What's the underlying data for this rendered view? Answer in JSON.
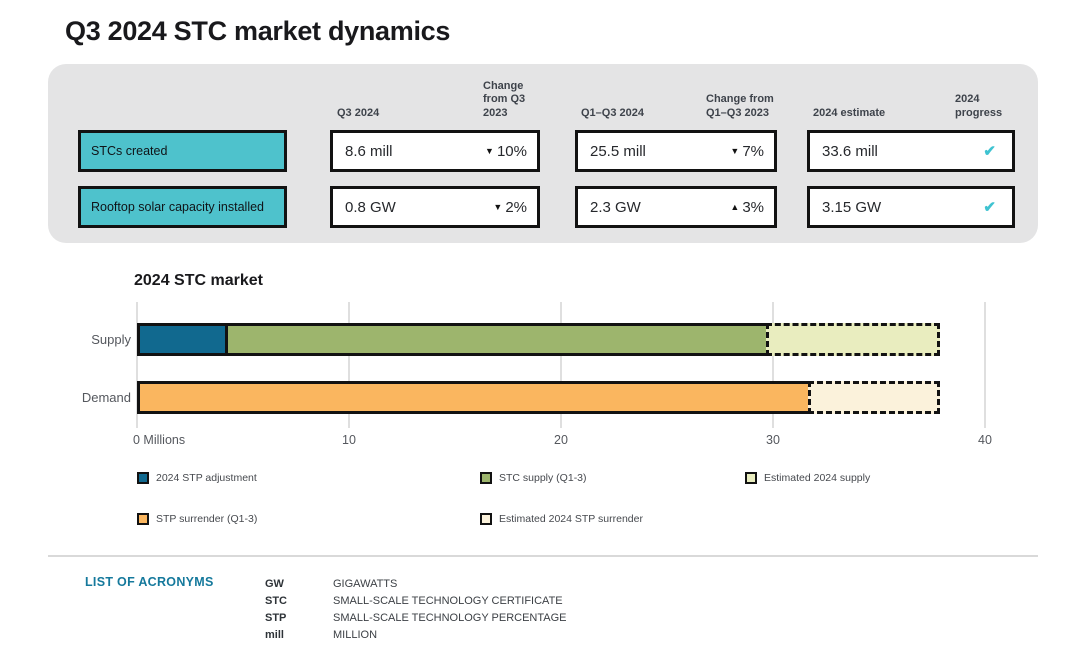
{
  "page": {
    "title": "Q3 2024 STC market dynamics"
  },
  "colors": {
    "teal_label": "#4ec2cc",
    "check_teal": "#3fc3d1",
    "panel_gray": "#e4e4e5",
    "acronym_heading_blue": "#15799c",
    "bar_blue": "#11698f",
    "bar_green": "#9db56d",
    "bar_green_light": "#e9edbf",
    "bar_orange": "#fab65f",
    "bar_cream": "#fbf2db"
  },
  "summary": {
    "columns": [
      "Q3 2024",
      "Change from Q3 2023",
      "Q1–Q3 2024",
      "Change from Q1–Q3 2023",
      "2024 estimate",
      "2024 progress"
    ],
    "rows": [
      {
        "label": "STCs created",
        "q3": "8.6 mill",
        "q3_arrow": "▼",
        "q3_change": "10%",
        "q1q3": "25.5 mill",
        "q1q3_arrow": "▼",
        "q1q3_change": "7%",
        "estimate": "33.6 mill",
        "progress_check": "✔",
        "progress_status": "on track"
      },
      {
        "label": "Rooftop solar capacity installed",
        "q3": "0.8 GW",
        "q3_arrow": "▼",
        "q3_change": "2%",
        "q1q3": "2.3 GW",
        "q1q3_arrow": "▲",
        "q1q3_change": "3%",
        "estimate": "3.15 GW",
        "progress_check": "✔",
        "progress_status": "on track"
      }
    ]
  },
  "chart_data": {
    "type": "bar",
    "orientation": "horizontal",
    "title": "2024 STC market",
    "xlabel": "Millions",
    "xlim": [
      0,
      40
    ],
    "x_ticks": [
      0,
      10,
      20,
      30,
      40
    ],
    "x_tick_labels": [
      "0 Millions",
      "10",
      "20",
      "30",
      "40"
    ],
    "grid": true,
    "legend_position": "bottom",
    "bars": [
      {
        "category": "Supply",
        "segments": [
          {
            "label": "2024 STP adjustment",
            "value": 4.3,
            "color": "#11698f",
            "dashed": false
          },
          {
            "label": "STC supply (Q1-3)",
            "value": 25.5,
            "color": "#9db56d",
            "dashed": false
          },
          {
            "label": "Estimated 2024 supply",
            "value": 8.1,
            "color": "#e9edbf",
            "dashed": true
          }
        ]
      },
      {
        "category": "Demand",
        "segments": [
          {
            "label": "STP surrender (Q1-3)",
            "value": 31.8,
            "color": "#fab65f",
            "dashed": false
          },
          {
            "label": "Estimated 2024 STP surrender",
            "value": 6.1,
            "color": "#fbf2db",
            "dashed": true
          }
        ]
      }
    ],
    "legend": [
      {
        "label": "2024 STP adjustment",
        "color": "#11698f",
        "dashed": false
      },
      {
        "label": "STC supply (Q1-3)",
        "color": "#9db56d",
        "dashed": false
      },
      {
        "label": "Estimated 2024 supply",
        "color": "#e9edbf",
        "dashed": true
      },
      {
        "label": "STP surrender (Q1-3)",
        "color": "#fab65f",
        "dashed": false
      },
      {
        "label": "Estimated 2024 STP surrender",
        "color": "#fbf2db",
        "dashed": true
      }
    ]
  },
  "acronyms": {
    "heading": "LIST OF ACRONYMS",
    "items": [
      {
        "term": "GW",
        "definition": "GIGAWATTS"
      },
      {
        "term": "STC",
        "definition": "SMALL-SCALE TECHNOLOGY CERTIFICATE"
      },
      {
        "term": "STP",
        "definition": "SMALL-SCALE TECHNOLOGY PERCENTAGE"
      },
      {
        "term": "mill",
        "definition": "MILLION"
      }
    ]
  }
}
